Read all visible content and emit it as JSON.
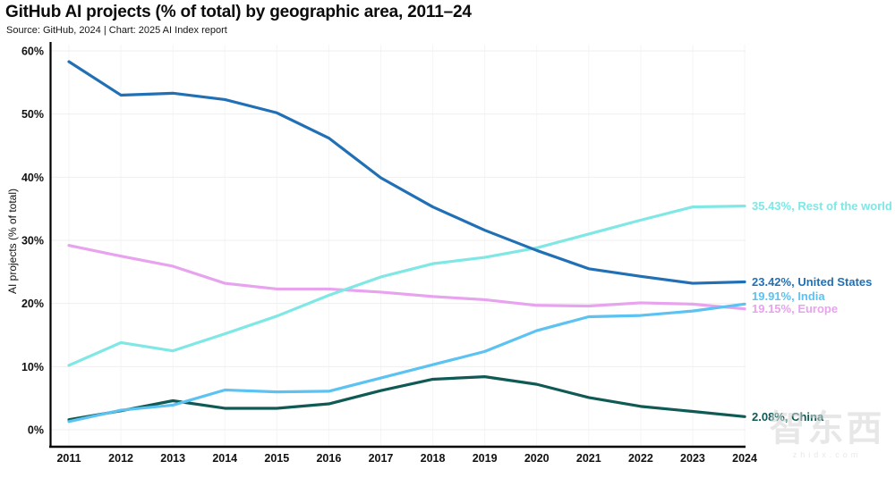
{
  "title": "GitHub AI projects (% of total) by geographic area, 2011–24",
  "source_line": "Source: GitHub, 2024 | Chart: 2025 AI Index report",
  "watermark": {
    "text": "智东西",
    "subtext": "zhidx.com"
  },
  "chart_data": {
    "type": "line",
    "title": "GitHub AI projects (% of total) by geographic area, 2011–24",
    "subtitle": "Source: GitHub, 2024 | Chart: 2025 AI Index report",
    "xlabel": "",
    "ylabel": "AI projects (% of total)",
    "x": [
      2011,
      2012,
      2013,
      2014,
      2015,
      2016,
      2017,
      2018,
      2019,
      2020,
      2021,
      2022,
      2023,
      2024
    ],
    "yticks": [
      0,
      10,
      20,
      30,
      40,
      50,
      60
    ],
    "ytick_suffix": "%",
    "ylim": [
      0,
      60
    ],
    "grid": true,
    "legend_position": "right-edge-labels",
    "series": [
      {
        "name": "Europe",
        "color": "#e8a3ee",
        "end_label": "19.15%, Europe",
        "end_value": 19.15,
        "values": [
          29.2,
          27.5,
          25.9,
          23.2,
          22.3,
          22.3,
          21.8,
          21.1,
          20.6,
          19.7,
          19.6,
          20.1,
          19.9,
          19.15
        ]
      },
      {
        "name": "Rest of the world",
        "color": "#7fe7e4",
        "end_label": "35.43%, Rest of the world",
        "end_value": 35.43,
        "values": [
          10.2,
          13.8,
          12.5,
          15.2,
          18.0,
          21.3,
          24.2,
          26.3,
          27.3,
          28.8,
          31.0,
          33.2,
          35.3,
          35.43
        ]
      },
      {
        "name": "United States",
        "color": "#2170b5",
        "end_label": "23.42%, United States",
        "end_value": 23.42,
        "values": [
          58.3,
          53.0,
          53.3,
          52.3,
          50.2,
          46.2,
          39.9,
          35.3,
          31.6,
          28.4,
          25.5,
          24.3,
          23.2,
          23.42
        ]
      },
      {
        "name": "China",
        "color": "#0f5a54",
        "end_label": "2.08%, China",
        "end_value": 2.08,
        "values": [
          1.6,
          3.0,
          4.6,
          3.4,
          3.4,
          4.1,
          6.2,
          8.0,
          8.4,
          7.2,
          5.1,
          3.7,
          2.9,
          2.08
        ]
      },
      {
        "name": "India",
        "color": "#5bc2f2",
        "end_label": "19.91%, India",
        "end_value": 19.91,
        "values": [
          1.3,
          3.1,
          3.9,
          6.3,
          6.0,
          6.1,
          8.2,
          10.3,
          12.4,
          15.7,
          17.9,
          18.1,
          18.8,
          19.91
        ]
      }
    ]
  }
}
